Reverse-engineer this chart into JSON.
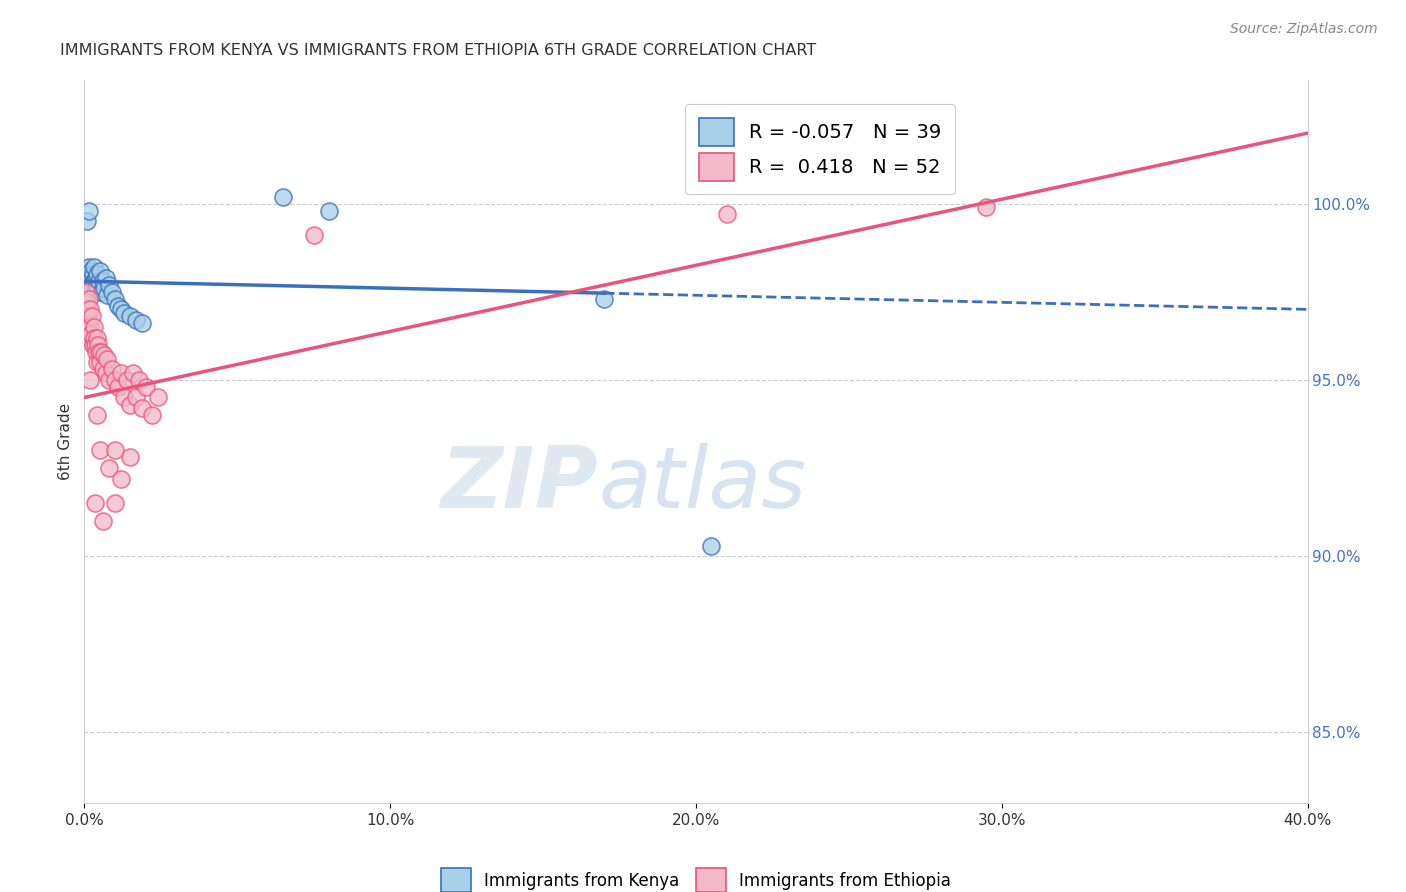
{
  "title": "IMMIGRANTS FROM KENYA VS IMMIGRANTS FROM ETHIOPIA 6TH GRADE CORRELATION CHART",
  "source": "Source: ZipAtlas.com",
  "ylabel": "6th Grade",
  "xlim": [
    0.0,
    40.0
  ],
  "ylim": [
    83.0,
    103.5
  ],
  "y_ticks": [
    85.0,
    90.0,
    95.0,
    100.0
  ],
  "y_tick_labels": [
    "85.0%",
    "90.0%",
    "95.0%",
    "100.0%"
  ],
  "x_ticks": [
    0,
    10,
    20,
    30,
    40
  ],
  "x_tick_labels": [
    "0.0%",
    "10.0%",
    "20.0%",
    "30.0%",
    "40.0%"
  ],
  "legend_kenya": "Immigrants from Kenya",
  "legend_ethiopia": "Immigrants from Ethiopia",
  "R_kenya": -0.057,
  "N_kenya": 39,
  "R_ethiopia": 0.418,
  "N_ethiopia": 52,
  "color_kenya": "#a8d0e8",
  "color_ethiopia": "#f4b8cb",
  "color_kenya_line": "#3a6fbd",
  "color_ethiopia_line": "#e8547a",
  "kenya_line_solid_end": 17.0,
  "kenya_line": {
    "x0": 0.0,
    "y0": 97.8,
    "x1": 40.0,
    "y1": 97.0
  },
  "ethiopia_line": {
    "x0": 0.0,
    "y0": 94.5,
    "x1": 40.0,
    "y1": 102.0
  },
  "kenya_points": [
    [
      0.05,
      97.9
    ],
    [
      0.08,
      98.1
    ],
    [
      0.1,
      97.8
    ],
    [
      0.12,
      98.0
    ],
    [
      0.15,
      98.2
    ],
    [
      0.18,
      97.7
    ],
    [
      0.2,
      97.9
    ],
    [
      0.22,
      98.1
    ],
    [
      0.25,
      97.6
    ],
    [
      0.28,
      98.0
    ],
    [
      0.3,
      97.8
    ],
    [
      0.32,
      98.2
    ],
    [
      0.35,
      97.5
    ],
    [
      0.38,
      97.9
    ],
    [
      0.4,
      97.7
    ],
    [
      0.42,
      98.0
    ],
    [
      0.45,
      97.6
    ],
    [
      0.48,
      97.8
    ],
    [
      0.5,
      98.1
    ],
    [
      0.55,
      97.5
    ],
    [
      0.6,
      97.8
    ],
    [
      0.65,
      97.6
    ],
    [
      0.7,
      97.9
    ],
    [
      0.75,
      97.4
    ],
    [
      0.8,
      97.7
    ],
    [
      0.9,
      97.5
    ],
    [
      1.0,
      97.3
    ],
    [
      1.1,
      97.1
    ],
    [
      1.2,
      97.0
    ],
    [
      1.3,
      96.9
    ],
    [
      1.5,
      96.8
    ],
    [
      1.7,
      96.7
    ],
    [
      1.9,
      96.6
    ],
    [
      6.5,
      100.2
    ],
    [
      8.0,
      99.8
    ],
    [
      17.0,
      97.3
    ],
    [
      20.5,
      90.3
    ],
    [
      0.1,
      99.5
    ],
    [
      0.15,
      99.8
    ]
  ],
  "ethiopia_points": [
    [
      0.05,
      97.5
    ],
    [
      0.08,
      97.2
    ],
    [
      0.1,
      97.0
    ],
    [
      0.12,
      96.8
    ],
    [
      0.15,
      97.3
    ],
    [
      0.18,
      96.5
    ],
    [
      0.2,
      97.0
    ],
    [
      0.22,
      96.3
    ],
    [
      0.25,
      96.8
    ],
    [
      0.28,
      96.0
    ],
    [
      0.3,
      96.5
    ],
    [
      0.32,
      96.2
    ],
    [
      0.35,
      96.0
    ],
    [
      0.38,
      95.8
    ],
    [
      0.4,
      96.2
    ],
    [
      0.42,
      95.5
    ],
    [
      0.45,
      96.0
    ],
    [
      0.48,
      95.8
    ],
    [
      0.5,
      95.5
    ],
    [
      0.55,
      95.8
    ],
    [
      0.6,
      95.3
    ],
    [
      0.65,
      95.7
    ],
    [
      0.7,
      95.2
    ],
    [
      0.75,
      95.6
    ],
    [
      0.8,
      95.0
    ],
    [
      0.9,
      95.3
    ],
    [
      1.0,
      95.0
    ],
    [
      1.1,
      94.8
    ],
    [
      1.2,
      95.2
    ],
    [
      1.3,
      94.5
    ],
    [
      1.4,
      95.0
    ],
    [
      1.5,
      94.3
    ],
    [
      1.6,
      95.2
    ],
    [
      1.7,
      94.5
    ],
    [
      1.8,
      95.0
    ],
    [
      1.9,
      94.2
    ],
    [
      2.0,
      94.8
    ],
    [
      2.2,
      94.0
    ],
    [
      2.4,
      94.5
    ],
    [
      0.5,
      93.0
    ],
    [
      0.8,
      92.5
    ],
    [
      1.0,
      93.0
    ],
    [
      1.2,
      92.2
    ],
    [
      1.5,
      92.8
    ],
    [
      0.35,
      91.5
    ],
    [
      0.6,
      91.0
    ],
    [
      1.0,
      91.5
    ],
    [
      0.2,
      95.0
    ],
    [
      0.4,
      94.0
    ],
    [
      7.5,
      99.1
    ],
    [
      21.0,
      99.7
    ],
    [
      29.5,
      99.9
    ]
  ]
}
